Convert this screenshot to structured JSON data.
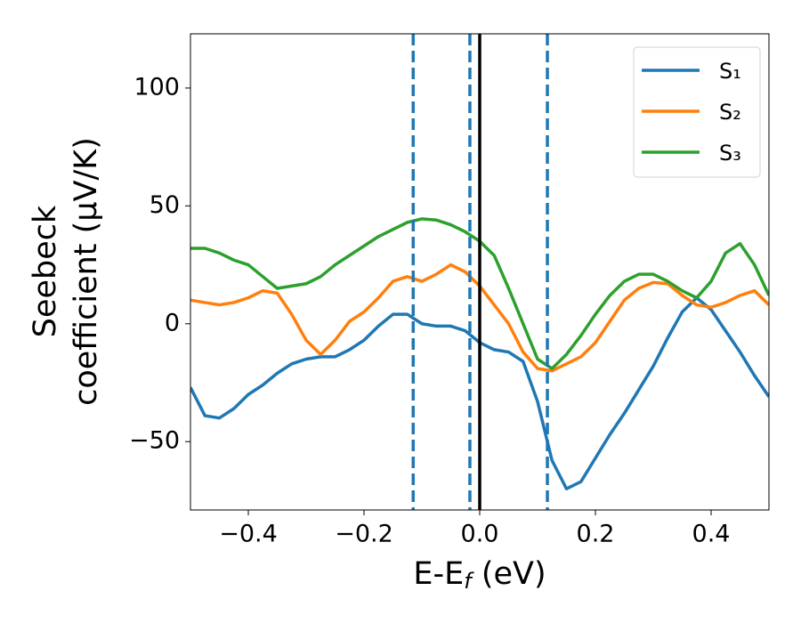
{
  "chart_data": {
    "type": "line",
    "xlabel": {
      "text": "E-E",
      "sub": "f",
      "after": " (eV)"
    },
    "ylabel": [
      "Seebeck",
      "coefficient  (μV/K)"
    ],
    "x": [
      -0.5,
      -0.475,
      -0.45,
      -0.425,
      -0.4,
      -0.375,
      -0.35,
      -0.325,
      -0.3,
      -0.275,
      -0.25,
      -0.225,
      -0.2,
      -0.175,
      -0.15,
      -0.125,
      -0.1,
      -0.075,
      -0.05,
      -0.025,
      0,
      0.025,
      0.05,
      0.075,
      0.1,
      0.125,
      0.15,
      0.175,
      0.2,
      0.225,
      0.25,
      0.275,
      0.3,
      0.325,
      0.35,
      0.375,
      0.4,
      0.425,
      0.45,
      0.475,
      0.5
    ],
    "series": [
      {
        "name": "S₁",
        "color": "#1f77b4",
        "values": [
          -27,
          -39,
          -40,
          -36,
          -30,
          -26,
          -21,
          -17,
          -15,
          -14,
          -14,
          -11,
          -7,
          -1,
          4,
          4,
          0,
          -1,
          -1,
          -3,
          -8,
          -11,
          -12,
          -16,
          -33,
          -58,
          -70,
          -67,
          -57,
          -47,
          -38,
          -28,
          -18,
          -6,
          5,
          11,
          6,
          -3,
          -12,
          -22,
          -31
        ]
      },
      {
        "name": "S₂",
        "color": "#ff7f0e",
        "values": [
          10,
          9,
          8,
          9,
          11,
          14,
          13,
          4,
          -7,
          -13,
          -7,
          1,
          5,
          11,
          18,
          20,
          18,
          21,
          25,
          22,
          16,
          8,
          0,
          -12,
          -19,
          -20,
          -17,
          -14,
          -8,
          1,
          10,
          15,
          17.5,
          17,
          12,
          8,
          7,
          9,
          12,
          14,
          8
        ]
      },
      {
        "name": "S₃",
        "color": "#2ca02c",
        "values": [
          32,
          32,
          30,
          27,
          25,
          20,
          15,
          16,
          17,
          20,
          25,
          29,
          33,
          37,
          40,
          43,
          44.5,
          44,
          42,
          39,
          35,
          29,
          15,
          0,
          -15,
          -19,
          -13,
          -5,
          4,
          12,
          18,
          21,
          21,
          18,
          14,
          11,
          18,
          30,
          34,
          25,
          12
        ]
      }
    ],
    "vlines": [
      {
        "x": -0.115,
        "color": "#1f77b4",
        "dashed": true
      },
      {
        "x": -0.017,
        "color": "#1f77b4",
        "dashed": true
      },
      {
        "x": 0,
        "color": "#000000",
        "dashed": false
      },
      {
        "x": 0.117,
        "color": "#1f77b4",
        "dashed": true
      }
    ],
    "xlim": [
      -0.5,
      0.5
    ],
    "ylim": [
      -79,
      123
    ],
    "xticks": [
      {
        "value": -0.4,
        "label": "−0.4"
      },
      {
        "value": -0.2,
        "label": "−0.2"
      },
      {
        "value": 0,
        "label": "0.0"
      },
      0.2,
      0.4
    ],
    "yticks": [
      {
        "value": -50,
        "label": "−50"
      },
      0,
      50,
      100
    ],
    "legend": "upper right"
  }
}
